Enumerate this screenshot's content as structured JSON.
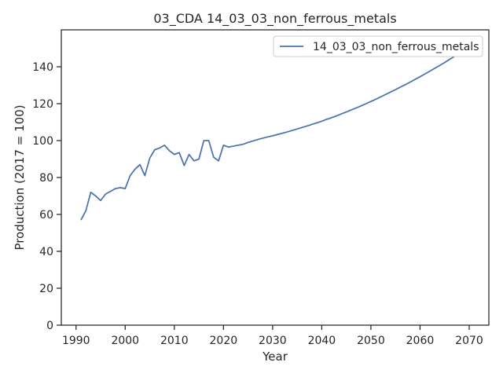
{
  "chart_data": {
    "type": "line",
    "title": "03_CDA 14_03_03_non_ferrous_metals",
    "xlabel": "Year",
    "ylabel": "Production (2017 = 100)",
    "xlim": [
      1987.0,
      2074.0
    ],
    "ylim": [
      0,
      160
    ],
    "xticks": [
      1990,
      2000,
      2010,
      2020,
      2030,
      2040,
      2050,
      2060,
      2070
    ],
    "yticks": [
      0,
      20,
      40,
      60,
      80,
      100,
      120,
      140
    ],
    "grid": false,
    "legend_position": "top-right",
    "series": [
      {
        "name": "14_03_03_non_ferrous_metals",
        "color": "#4c72b0",
        "x": [
          1991,
          1992,
          1993,
          1994,
          1995,
          1996,
          1997,
          1998,
          1999,
          2000,
          2001,
          2002,
          2003,
          2004,
          2005,
          2006,
          2007,
          2008,
          2009,
          2010,
          2011,
          2012,
          2013,
          2014,
          2015,
          2016,
          2017,
          2018,
          2019,
          2020,
          2021,
          2022,
          2023,
          2024,
          2025,
          2026,
          2027,
          2028,
          2029,
          2030,
          2031,
          2032,
          2033,
          2034,
          2035,
          2036,
          2037,
          2038,
          2039,
          2040,
          2041,
          2042,
          2043,
          2044,
          2045,
          2046,
          2047,
          2048,
          2049,
          2050,
          2051,
          2052,
          2053,
          2054,
          2055,
          2056,
          2057,
          2058,
          2059,
          2060,
          2061,
          2062,
          2063,
          2064,
          2065,
          2066,
          2067,
          2068,
          2069,
          2070
        ],
        "values": [
          57,
          62,
          72,
          70,
          67.5,
          71,
          72.5,
          74,
          74.5,
          74,
          81,
          84.5,
          87,
          81,
          90.5,
          95,
          96,
          97.5,
          94.5,
          92.5,
          93.5,
          86.5,
          92.5,
          89,
          90,
          100,
          100,
          91,
          89,
          97.5,
          96.5,
          97,
          97.5,
          98,
          99,
          99.8,
          100.6,
          101.3,
          102,
          102.6,
          103.3,
          104,
          104.7,
          105.5,
          106.3,
          107.1,
          107.9,
          108.8,
          109.6,
          110.5,
          111.5,
          112.4,
          113.4,
          114.5,
          115.5,
          116.6,
          117.7,
          118.8,
          120,
          121.2,
          122.4,
          123.7,
          125,
          126.3,
          127.6,
          129,
          130.3,
          131.7,
          133.2,
          134.6,
          136.1,
          137.6,
          139.2,
          140.7,
          142.3,
          144,
          145.6,
          147.3,
          149,
          150.7
        ]
      }
    ]
  }
}
